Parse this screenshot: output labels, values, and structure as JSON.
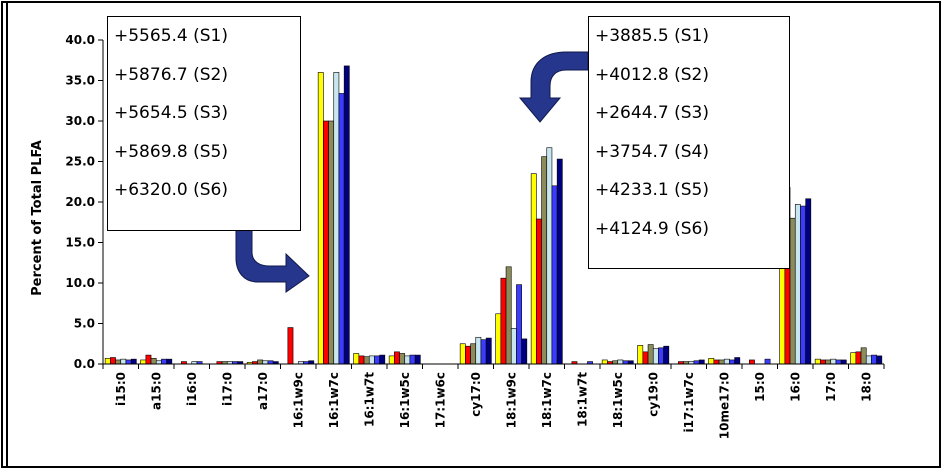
{
  "chart_data": {
    "type": "bar",
    "ylabel": "Percent of Total PLFA",
    "xlabel": "",
    "ylim": [
      0,
      40
    ],
    "yticks": [
      "0.0",
      "5.0",
      "10.0",
      "15.0",
      "20.0",
      "25.0",
      "30.0",
      "35.0",
      "40.0"
    ],
    "grid": false,
    "legend": "none",
    "categories": [
      "i15:0",
      "a15:0",
      "i16:0",
      "i17:0",
      "a17:0",
      "16:1w9c",
      "16:1w7c",
      "16:1w7t",
      "16:1w5c",
      "17:1w6c",
      "cy17:0",
      "18:1w9c",
      "18:1w7c",
      "18:1w7t",
      "18:1w5c",
      "cy19:0",
      "i17:1w7c",
      "10me17:0",
      "15:0",
      "16:0",
      "17:0",
      "18:0"
    ],
    "series_colors": [
      "#ffff00",
      "#ff0000",
      "#8c8c5a",
      "#c8e6f0",
      "#3c3cff",
      "#00007f"
    ],
    "series": [
      {
        "values": [
          0.7,
          0.5,
          0.0,
          0.0,
          0.2,
          0.0,
          36.0,
          1.3,
          1.0,
          0.0,
          2.5,
          6.2,
          23.5,
          0.0,
          0.5,
          2.3,
          0.0,
          0.7,
          0.0,
          21.8,
          0.6,
          1.4
        ]
      },
      {
        "values": [
          0.8,
          1.1,
          0.3,
          0.3,
          0.3,
          4.5,
          30.0,
          1.0,
          1.5,
          0.0,
          2.2,
          10.6,
          17.9,
          0.3,
          0.3,
          1.5,
          0.3,
          0.5,
          0.5,
          21.8,
          0.5,
          1.5
        ]
      },
      {
        "values": [
          0.5,
          0.7,
          0.0,
          0.3,
          0.5,
          0.0,
          30.0,
          0.9,
          1.3,
          0.0,
          2.5,
          12.0,
          25.6,
          0.0,
          0.4,
          2.4,
          0.3,
          0.5,
          0.0,
          18.0,
          0.5,
          2.0
        ]
      },
      {
        "values": [
          0.6,
          0.4,
          0.3,
          0.3,
          0.4,
          0.3,
          36.0,
          1.0,
          1.0,
          0.0,
          3.3,
          4.4,
          26.7,
          0.0,
          0.5,
          1.9,
          0.3,
          0.6,
          0.0,
          19.7,
          0.6,
          1.0
        ]
      },
      {
        "values": [
          0.5,
          0.6,
          0.3,
          0.3,
          0.4,
          0.3,
          33.4,
          1.0,
          1.1,
          0.0,
          3.0,
          9.8,
          22.0,
          0.3,
          0.4,
          2.0,
          0.4,
          0.5,
          0.6,
          19.5,
          0.5,
          1.1
        ]
      },
      {
        "values": [
          0.6,
          0.6,
          0.0,
          0.3,
          0.3,
          0.4,
          36.8,
          1.1,
          1.1,
          0.0,
          3.2,
          3.1,
          25.3,
          0.0,
          0.4,
          2.2,
          0.5,
          0.8,
          0.0,
          20.4,
          0.5,
          1.0
        ]
      }
    ]
  },
  "callouts": {
    "left": [
      "+5565.4 (S1)",
      "+5876.7 (S2)",
      "+5654.5 (S3)",
      "+5869.8 (S5)",
      "+6320.0 (S6)"
    ],
    "right": [
      "+3885.5 (S1)",
      "+4012.8 (S2)",
      "+2644.7 (S3)",
      "+3754.7 (S4)",
      "+4233.1 (S5)",
      "+4124.9 (S6)"
    ]
  }
}
